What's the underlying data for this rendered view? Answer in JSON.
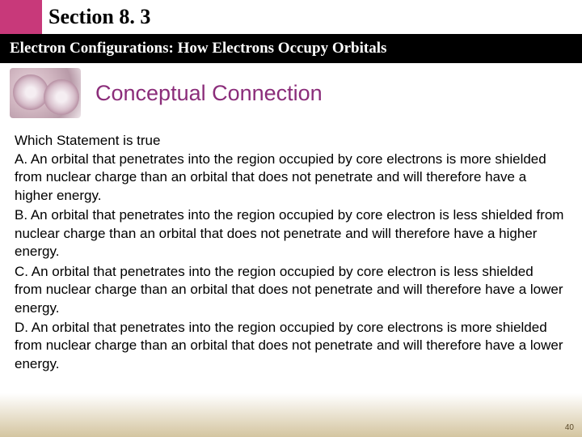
{
  "header": {
    "section_label": "Section 8. 3",
    "subtitle": "Electron Configurations: How Electrons Occupy Orbitals"
  },
  "hero": {
    "title": "Conceptual Connection",
    "title_color": "#8b2d7a"
  },
  "question": {
    "stem": "Which Statement is true",
    "options": [
      "A.  An orbital that penetrates into the region occupied by core electrons is more shielded from nuclear charge than an orbital that does not penetrate and will therefore have a higher energy.",
      "B.  An orbital that penetrates into the region occupied by core electron is less shielded from nuclear charge than an orbital that does not penetrate and will therefore have a higher energy.",
      "C.  An orbital that penetrates into the region occupied by core electron is less shielded from nuclear charge than an orbital that does not penetrate and will therefore have a lower energy.",
      "D. An orbital that penetrates into the region occupied by core electrons is more shielded from nuclear charge than an orbital that does not penetrate and will therefore have a lower energy."
    ]
  },
  "page_number": "40",
  "colors": {
    "accent": "#c8397a",
    "subtitle_bg": "#000000",
    "hero_title": "#8b2d7a",
    "footer_gradient_end": "#d4c5a0"
  }
}
